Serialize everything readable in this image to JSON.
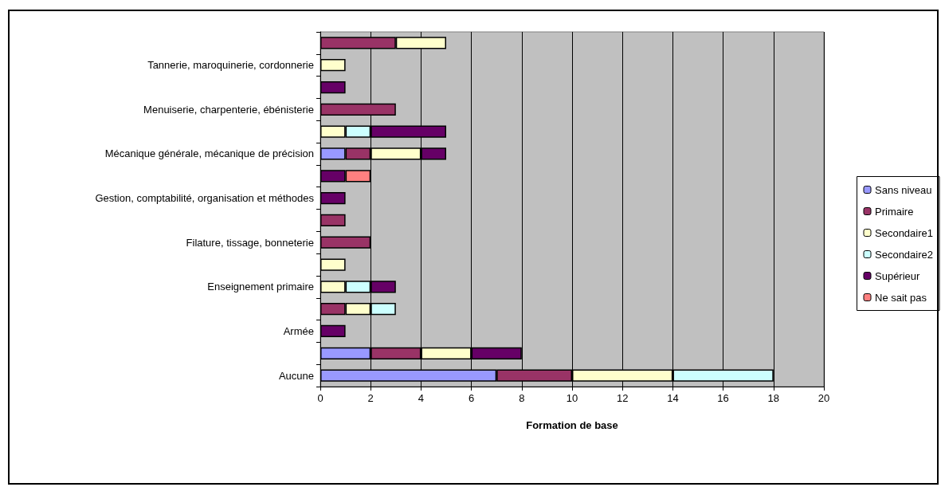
{
  "chart_data": {
    "type": "bar",
    "orientation": "horizontal",
    "stacked": true,
    "xlabel": "Formation de base",
    "categories": [
      null,
      "Tannerie, maroquinerie, cordonnerie",
      null,
      "Menuiserie, charpenterie, ébénisterie",
      null,
      "Mécanique générale, mécanique de précision",
      null,
      "Gestion, comptabilité, organisation et méthodes",
      null,
      "Filature, tissage, bonneterie",
      null,
      "Enseignement primaire",
      null,
      "Armée",
      null,
      "Aucune"
    ],
    "series": [
      {
        "name": "Sans niveau",
        "color": "#9999ff",
        "values": [
          null,
          null,
          null,
          null,
          null,
          1,
          null,
          null,
          null,
          null,
          null,
          null,
          null,
          null,
          2,
          7
        ]
      },
      {
        "name": "Primaire",
        "color": "#993366",
        "values": [
          3,
          null,
          null,
          3,
          null,
          1,
          null,
          null,
          1,
          2,
          null,
          null,
          1,
          null,
          2,
          3
        ]
      },
      {
        "name": "Secondaire1",
        "color": "#ffffcc",
        "values": [
          2,
          1,
          null,
          null,
          1,
          2,
          null,
          null,
          null,
          null,
          1,
          1,
          1,
          null,
          2,
          4
        ]
      },
      {
        "name": "Secondaire2",
        "color": "#ccffff",
        "values": [
          null,
          null,
          null,
          null,
          1,
          null,
          null,
          null,
          null,
          null,
          null,
          1,
          1,
          null,
          null,
          4
        ]
      },
      {
        "name": "Supérieur",
        "color": "#660066",
        "values": [
          null,
          null,
          1,
          null,
          3,
          1,
          1,
          1,
          null,
          null,
          null,
          1,
          null,
          1,
          2,
          null
        ]
      },
      {
        "name": "Ne sait pas",
        "color": "#ff8080",
        "values": [
          null,
          null,
          null,
          null,
          null,
          null,
          1,
          null,
          null,
          null,
          null,
          null,
          null,
          null,
          null,
          null
        ]
      }
    ],
    "xlim": [
      0,
      20
    ],
    "xticks": [
      0,
      2,
      4,
      6,
      8,
      10,
      12,
      14,
      16,
      18,
      20
    ],
    "grid": "x",
    "legend": "right"
  }
}
